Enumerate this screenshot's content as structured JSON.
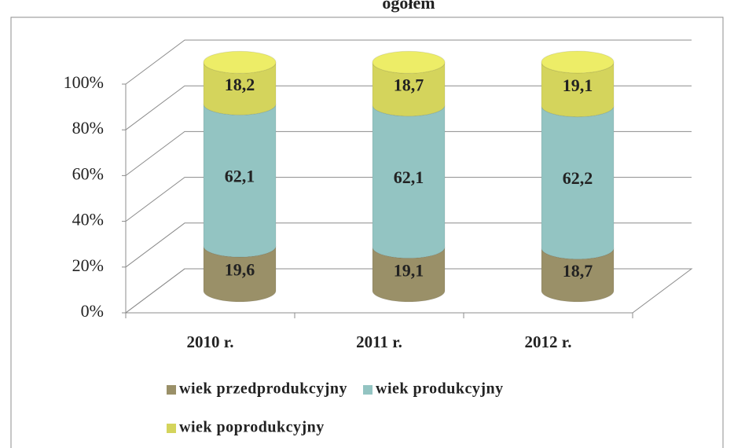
{
  "chart_data": {
    "type": "bar",
    "stacked": true,
    "shape": "cylinder",
    "title": "ogółem",
    "categories": [
      "2010 r.",
      "2011  r.",
      "2012 r."
    ],
    "series": [
      {
        "name": "wiek przedprodukcyjny",
        "color": "#9a9068",
        "values": [
          19.6,
          19.1,
          18.7
        ],
        "value_labels": [
          "19,6",
          "19,1",
          "18,7"
        ]
      },
      {
        "name": "wiek produkcyjny",
        "color": "#93c4c2",
        "values": [
          62.1,
          62.1,
          62.2
        ],
        "value_labels": [
          "62,1",
          "62,1",
          "62,2"
        ]
      },
      {
        "name": "wiek poprodukcyjny",
        "color": "#d4d45c",
        "values": [
          18.2,
          18.7,
          19.1
        ],
        "value_labels": [
          "18,2",
          "18,7",
          "19,1"
        ]
      }
    ],
    "ylim": [
      0,
      100
    ],
    "yticks": [
      {
        "value": 0,
        "label": "0%"
      },
      {
        "value": 20,
        "label": "20%"
      },
      {
        "value": 40,
        "label": "40%"
      },
      {
        "value": 60,
        "label": "60%"
      },
      {
        "value": 80,
        "label": "80%"
      },
      {
        "value": 100,
        "label": "100%"
      }
    ],
    "grid": true
  }
}
